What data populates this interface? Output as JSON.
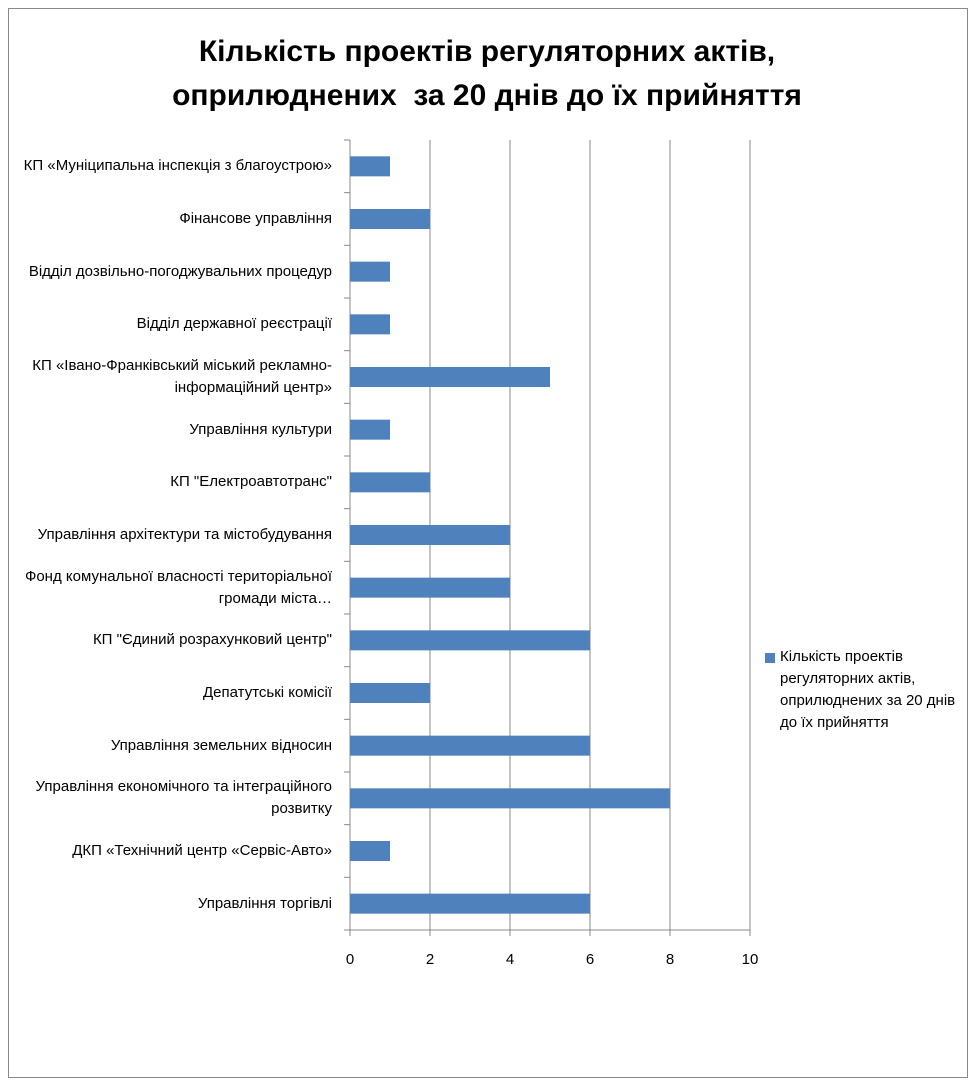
{
  "chart_data": {
    "type": "barh",
    "title": "Кількість проектів регуляторних актів, оприлюднених  за 20 днів до їх прийняття",
    "categories": [
      "КП «Муніципальна інспекція з благоустрою»",
      "Фінансове управління",
      "Відділ дозвільно-погоджувальних процедур",
      "Відділ державної реєстрації",
      "КП «Івано-Франківський міський рекламно-інформаційний центр»",
      "Управління культури",
      "КП \"Електроавтотранс\"",
      "Управління архітектури та містобудування",
      "Фонд комунальної власності територіальної громади міста…",
      "КП \"Єдиний розрахунковий центр\"",
      "Депатутські комісії",
      "Управління земельних відносин",
      "Управління економічного та інтеграційного розвитку",
      "ДКП «Технічний центр «Сервіс-Авто»",
      "Управління торгівлі"
    ],
    "series": [
      {
        "name": "Кількість проектів регуляторних актів, оприлюднених за 20 днів до їх прийняття",
        "color": "#4f81bd",
        "values": [
          1,
          2,
          1,
          1,
          5,
          1,
          2,
          4,
          4,
          6,
          2,
          6,
          8,
          1,
          6
        ]
      }
    ],
    "xlim": [
      0,
      10
    ],
    "xticks": [
      0,
      2,
      4,
      6,
      8,
      10
    ],
    "grid": true,
    "legend": "right"
  }
}
